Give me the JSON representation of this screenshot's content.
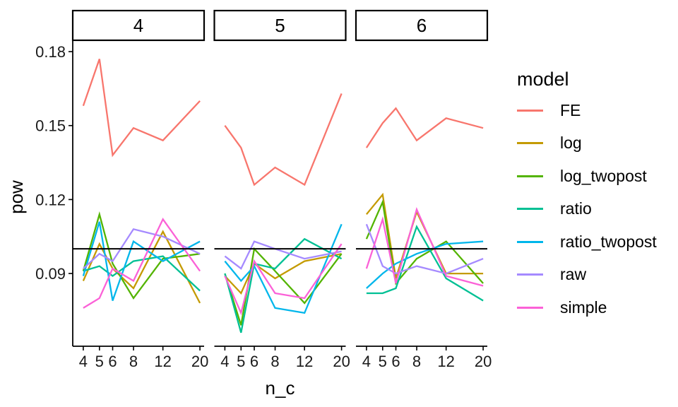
{
  "chart_data": {
    "type": "line",
    "title": "",
    "xlabel": "n_c",
    "ylabel": "pow",
    "legend_title": "model",
    "legend_position": "right",
    "grid": "off",
    "x_scale": "log10",
    "facet_labels": [
      "4",
      "5",
      "6"
    ],
    "x": [
      4,
      5,
      6,
      8,
      12,
      20
    ],
    "x_tick_labels": [
      "4",
      "5",
      "6",
      "8",
      "12",
      "20"
    ],
    "y_ticks": [
      0.09,
      0.12,
      0.15,
      0.18
    ],
    "y_tick_labels": [
      "0.09",
      "0.12",
      "0.15",
      "0.18"
    ],
    "ylim": [
      0.0605,
      0.1846
    ],
    "reference_line": {
      "y": 0.1,
      "color": "#000000"
    },
    "series": [
      {
        "name": "FE",
        "color": "#F8766D",
        "values_by_facet": [
          [
            0.158,
            0.177,
            0.138,
            0.149,
            0.144,
            0.16
          ],
          [
            0.15,
            0.141,
            0.126,
            0.133,
            0.126,
            0.163
          ],
          [
            0.141,
            0.151,
            0.157,
            0.144,
            0.153,
            0.149
          ]
        ]
      },
      {
        "name": "log",
        "color": "#C49A00",
        "values_by_facet": [
          [
            0.087,
            0.102,
            0.092,
            0.084,
            0.107,
            0.078
          ],
          [
            0.089,
            0.082,
            0.094,
            0.088,
            0.095,
            0.098
          ],
          [
            0.114,
            0.122,
            0.088,
            0.115,
            0.09,
            0.09
          ]
        ]
      },
      {
        "name": "log_twopost",
        "color": "#53B400",
        "values_by_facet": [
          [
            0.091,
            0.114,
            0.094,
            0.08,
            0.096,
            0.098
          ],
          [
            0.09,
            0.069,
            0.1,
            0.091,
            0.078,
            0.098
          ],
          [
            0.104,
            0.119,
            0.086,
            0.096,
            0.103,
            0.086
          ]
        ]
      },
      {
        "name": "ratio",
        "color": "#00C094",
        "values_by_facet": [
          [
            0.091,
            0.093,
            0.089,
            0.095,
            0.097,
            0.083
          ],
          [
            0.09,
            0.066,
            0.094,
            0.092,
            0.104,
            0.096
          ],
          [
            0.082,
            0.082,
            0.084,
            0.109,
            0.088,
            0.079
          ]
        ]
      },
      {
        "name": "ratio_twopost",
        "color": "#00B6EB",
        "values_by_facet": [
          [
            0.089,
            0.111,
            0.079,
            0.103,
            0.095,
            0.103
          ],
          [
            0.095,
            0.087,
            0.093,
            0.076,
            0.074,
            0.11
          ],
          [
            0.084,
            0.09,
            0.094,
            0.098,
            0.102,
            0.103
          ]
        ]
      },
      {
        "name": "raw",
        "color": "#A58AFF",
        "values_by_facet": [
          [
            0.092,
            0.098,
            0.095,
            0.108,
            0.105,
            0.098
          ],
          [
            0.097,
            0.092,
            0.103,
            0.1,
            0.096,
            0.099
          ],
          [
            0.11,
            0.093,
            0.09,
            0.093,
            0.09,
            0.096
          ]
        ]
      },
      {
        "name": "simple",
        "color": "#FB61D7",
        "values_by_facet": [
          [
            0.076,
            0.08,
            0.092,
            0.087,
            0.112,
            0.091
          ],
          [
            0.089,
            0.074,
            0.095,
            0.082,
            0.08,
            0.102
          ],
          [
            0.092,
            0.112,
            0.086,
            0.116,
            0.089,
            0.085
          ]
        ]
      }
    ]
  }
}
